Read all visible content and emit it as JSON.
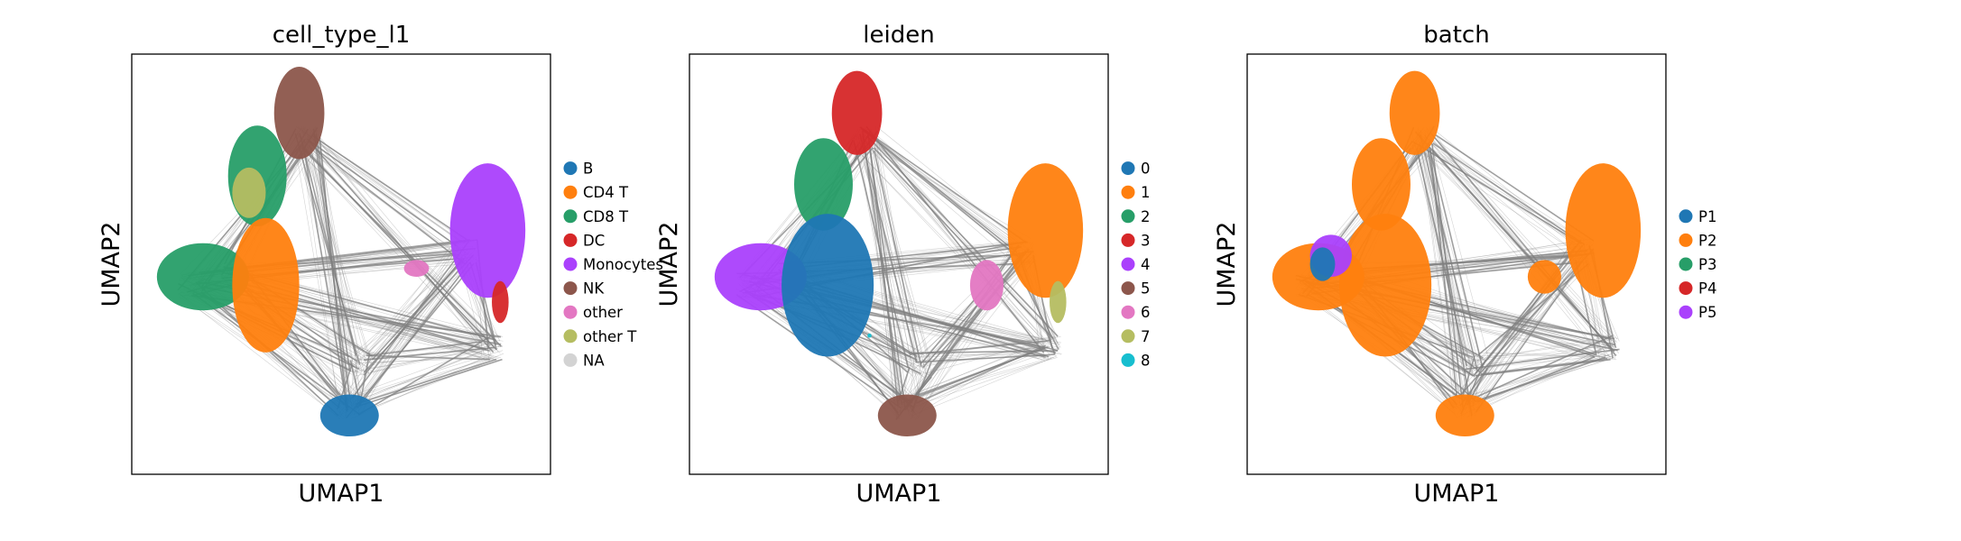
{
  "chart_data": [
    {
      "type": "scatter",
      "title": "cell_type_l1",
      "xlabel": "UMAP1",
      "ylabel": "UMAP2",
      "ticks": "none",
      "legend_position": "right",
      "legend": [
        {
          "label": "B",
          "color": "#1f77b4"
        },
        {
          "label": "CD4 T",
          "color": "#ff7f0e"
        },
        {
          "label": "CD8 T",
          "color": "#279e68"
        },
        {
          "label": "DC",
          "color": "#d62728"
        },
        {
          "label": "Monocytes",
          "color": "#aa40fc"
        },
        {
          "label": "NK",
          "color": "#8c564b"
        },
        {
          "label": "other",
          "color": "#e377c2"
        },
        {
          "label": "other T",
          "color": "#b5bd61"
        },
        {
          "label": "NA",
          "color": "#d3d3d3"
        }
      ],
      "regions": [
        {
          "label": "NK",
          "color": "#8c564b",
          "shape": "ellipse",
          "cx": 0.4,
          "cy": 0.86,
          "rx": 0.06,
          "ry": 0.11
        },
        {
          "label": "CD8 T",
          "color": "#279e68",
          "shape": "ellipse",
          "cx": 0.3,
          "cy": 0.71,
          "rx": 0.07,
          "ry": 0.12
        },
        {
          "label": "other T",
          "color": "#b5bd61",
          "shape": "ellipse",
          "cx": 0.28,
          "cy": 0.67,
          "rx": 0.04,
          "ry": 0.06
        },
        {
          "label": "CD8 T",
          "color": "#279e68",
          "shape": "ellipse",
          "cx": 0.17,
          "cy": 0.47,
          "rx": 0.11,
          "ry": 0.08
        },
        {
          "label": "CD4 T",
          "color": "#ff7f0e",
          "shape": "ellipse",
          "cx": 0.32,
          "cy": 0.45,
          "rx": 0.08,
          "ry": 0.16
        },
        {
          "label": "Monocytes",
          "color": "#aa40fc",
          "shape": "ellipse",
          "cx": 0.85,
          "cy": 0.58,
          "rx": 0.09,
          "ry": 0.16
        },
        {
          "label": "other",
          "color": "#e377c2",
          "shape": "ellipse",
          "cx": 0.68,
          "cy": 0.49,
          "rx": 0.03,
          "ry": 0.02
        },
        {
          "label": "DC",
          "color": "#d62728",
          "shape": "ellipse",
          "cx": 0.88,
          "cy": 0.41,
          "rx": 0.02,
          "ry": 0.05
        },
        {
          "label": "B",
          "color": "#1f77b4",
          "shape": "ellipse",
          "cx": 0.52,
          "cy": 0.14,
          "rx": 0.07,
          "ry": 0.05
        }
      ]
    },
    {
      "type": "scatter",
      "title": "leiden",
      "xlabel": "UMAP1",
      "ylabel": "UMAP2",
      "ticks": "none",
      "legend_position": "right",
      "legend": [
        {
          "label": "0",
          "color": "#1f77b4"
        },
        {
          "label": "1",
          "color": "#ff7f0e"
        },
        {
          "label": "2",
          "color": "#279e68"
        },
        {
          "label": "3",
          "color": "#d62728"
        },
        {
          "label": "4",
          "color": "#aa40fc"
        },
        {
          "label": "5",
          "color": "#8c564b"
        },
        {
          "label": "6",
          "color": "#e377c2"
        },
        {
          "label": "7",
          "color": "#b5bd61"
        },
        {
          "label": "8",
          "color": "#17becf"
        }
      ],
      "regions": [
        {
          "label": "3",
          "color": "#d62728",
          "shape": "ellipse",
          "cx": 0.4,
          "cy": 0.86,
          "rx": 0.06,
          "ry": 0.1
        },
        {
          "label": "2",
          "color": "#279e68",
          "shape": "ellipse",
          "cx": 0.32,
          "cy": 0.69,
          "rx": 0.07,
          "ry": 0.11
        },
        {
          "label": "4",
          "color": "#aa40fc",
          "shape": "ellipse",
          "cx": 0.17,
          "cy": 0.47,
          "rx": 0.11,
          "ry": 0.08
        },
        {
          "label": "0",
          "color": "#1f77b4",
          "shape": "ellipse",
          "cx": 0.33,
          "cy": 0.45,
          "rx": 0.11,
          "ry": 0.17
        },
        {
          "label": "1",
          "color": "#ff7f0e",
          "shape": "ellipse",
          "cx": 0.85,
          "cy": 0.58,
          "rx": 0.09,
          "ry": 0.16
        },
        {
          "label": "6",
          "color": "#e377c2",
          "shape": "ellipse",
          "cx": 0.71,
          "cy": 0.45,
          "rx": 0.04,
          "ry": 0.06
        },
        {
          "label": "7",
          "color": "#b5bd61",
          "shape": "ellipse",
          "cx": 0.88,
          "cy": 0.41,
          "rx": 0.02,
          "ry": 0.05
        },
        {
          "label": "5",
          "color": "#8c564b",
          "shape": "ellipse",
          "cx": 0.52,
          "cy": 0.14,
          "rx": 0.07,
          "ry": 0.05
        },
        {
          "label": "8",
          "color": "#17becf",
          "shape": "ellipse",
          "cx": 0.43,
          "cy": 0.33,
          "rx": 0.005,
          "ry": 0.005
        }
      ]
    },
    {
      "type": "scatter",
      "title": "batch",
      "xlabel": "UMAP1",
      "ylabel": "UMAP2",
      "ticks": "none",
      "legend_position": "right",
      "legend": [
        {
          "label": "P1",
          "color": "#1f77b4"
        },
        {
          "label": "P2",
          "color": "#ff7f0e"
        },
        {
          "label": "P3",
          "color": "#279e68"
        },
        {
          "label": "P4",
          "color": "#d62728"
        },
        {
          "label": "P5",
          "color": "#aa40fc"
        }
      ],
      "regions": [
        {
          "label": "P2",
          "color": "#ff7f0e",
          "shape": "ellipse",
          "cx": 0.4,
          "cy": 0.86,
          "rx": 0.06,
          "ry": 0.1
        },
        {
          "label": "P2",
          "color": "#ff7f0e",
          "shape": "ellipse",
          "cx": 0.32,
          "cy": 0.69,
          "rx": 0.07,
          "ry": 0.11
        },
        {
          "label": "P2",
          "color": "#ff7f0e",
          "shape": "ellipse",
          "cx": 0.17,
          "cy": 0.47,
          "rx": 0.11,
          "ry": 0.08
        },
        {
          "label": "P2",
          "color": "#ff7f0e",
          "shape": "ellipse",
          "cx": 0.33,
          "cy": 0.45,
          "rx": 0.11,
          "ry": 0.17
        },
        {
          "label": "P2",
          "color": "#ff7f0e",
          "shape": "ellipse",
          "cx": 0.85,
          "cy": 0.58,
          "rx": 0.09,
          "ry": 0.16
        },
        {
          "label": "P2",
          "color": "#ff7f0e",
          "shape": "ellipse",
          "cx": 0.71,
          "cy": 0.47,
          "rx": 0.04,
          "ry": 0.04
        },
        {
          "label": "P2",
          "color": "#ff7f0e",
          "shape": "ellipse",
          "cx": 0.52,
          "cy": 0.14,
          "rx": 0.07,
          "ry": 0.05
        },
        {
          "label": "P5",
          "color": "#aa40fc",
          "shape": "ellipse",
          "cx": 0.2,
          "cy": 0.52,
          "rx": 0.05,
          "ry": 0.05
        },
        {
          "label": "P1",
          "color": "#1f77b4",
          "shape": "ellipse",
          "cx": 0.18,
          "cy": 0.5,
          "rx": 0.03,
          "ry": 0.04
        }
      ]
    }
  ]
}
